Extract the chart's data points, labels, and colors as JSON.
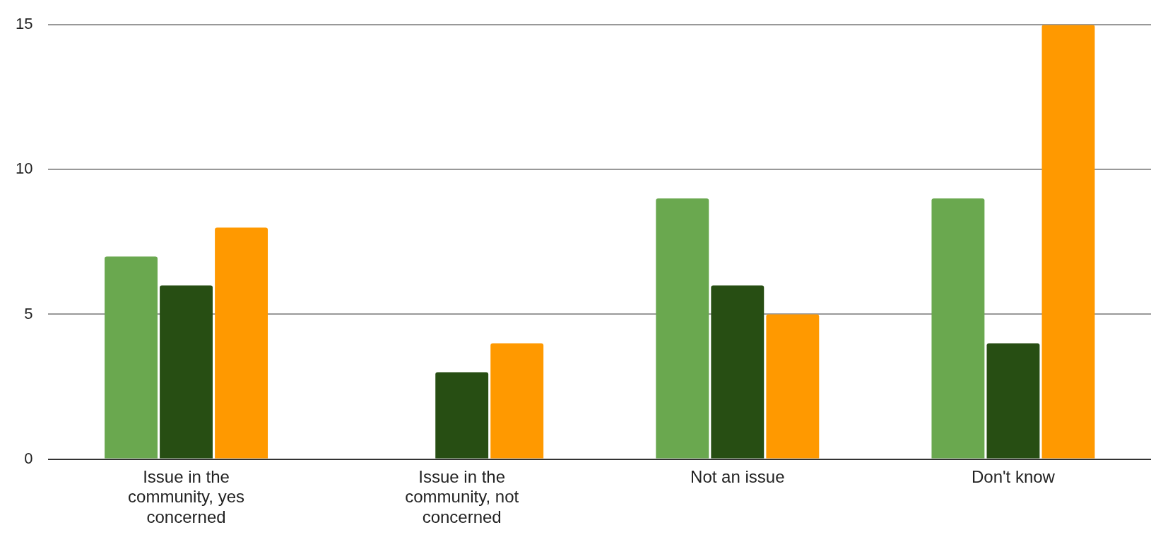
{
  "chart_data": {
    "type": "bar",
    "categories": [
      "Issue in the community, yes concerned",
      "Issue in the community, not concerned",
      "Not an issue",
      "Don't know"
    ],
    "series": [
      {
        "color": "#6aa84f",
        "values": [
          7,
          0,
          9,
          9
        ]
      },
      {
        "color": "#274e13",
        "values": [
          6,
          3,
          6,
          4
        ]
      },
      {
        "color": "#ff9900",
        "values": [
          8,
          4,
          5,
          15
        ]
      }
    ],
    "ylim": [
      0,
      15
    ],
    "yticks": [
      0,
      5,
      10,
      15
    ],
    "grid": "y",
    "legend": false
  }
}
